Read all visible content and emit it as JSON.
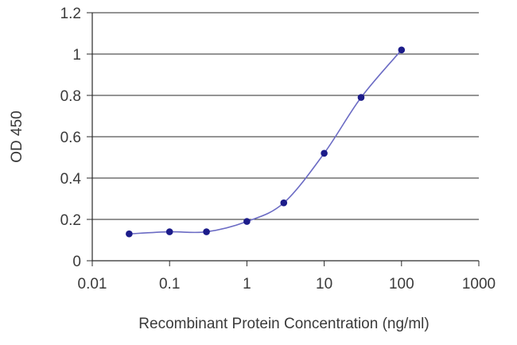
{
  "chart_data": {
    "type": "line",
    "title": "",
    "xlabel": "Recombinant Protein Concentration (ng/ml)",
    "ylabel": "OD 450",
    "x_scale": "log",
    "xlim": [
      0.01,
      1000
    ],
    "ylim": [
      0,
      1.2
    ],
    "x_ticks": [
      "0.01",
      "0.1",
      "1",
      "10",
      "100",
      "1000"
    ],
    "y_ticks": [
      "0",
      "0.2",
      "0.4",
      "0.6",
      "0.8",
      "1",
      "1.2"
    ],
    "grid": "horizontal",
    "legend": "none",
    "colors": {
      "line": "#6b6bc4",
      "marker": "#1c1c8a",
      "grid": "#2a2a2a",
      "axis": "#2a2a2a"
    },
    "series": [
      {
        "x": [
          0.03,
          0.1,
          0.3,
          1,
          3,
          10,
          30,
          100
        ],
        "y": [
          0.13,
          0.14,
          0.14,
          0.19,
          0.28,
          0.52,
          0.79,
          1.02
        ]
      }
    ]
  }
}
